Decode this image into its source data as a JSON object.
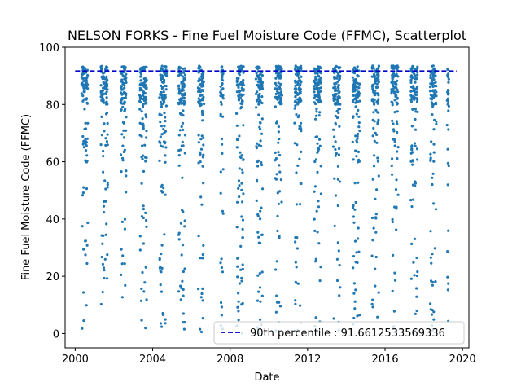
{
  "chart_data": {
    "type": "scatter",
    "title": "NELSON FORKS - Fine Fuel Moisture Code (FFMC), Scatterplot",
    "xlabel": "Date",
    "ylabel": "Fine Fuel Moisture Code (FFMC)",
    "xlim": [
      2000.0,
      2020.0
    ],
    "ylim": [
      -5,
      100
    ],
    "x_ticks": [
      2000,
      2004,
      2008,
      2012,
      2016,
      2020
    ],
    "y_ticks": [
      0,
      20,
      40,
      60,
      80,
      100
    ],
    "grid": false,
    "point_color": "#1f77b4",
    "reference_line": {
      "label": "90th percentile : 91.6612533569336",
      "value": 91.6612533569336,
      "color": "#0000cc",
      "style": "dashed"
    },
    "legend_position": "lower-right",
    "seasons": [
      {
        "year": 2000,
        "start": 2000.33,
        "end": 2000.65
      },
      {
        "year": 2001,
        "start": 2001.33,
        "end": 2001.68
      },
      {
        "year": 2002,
        "start": 2002.35,
        "end": 2002.65
      },
      {
        "year": 2003,
        "start": 2003.33,
        "end": 2003.7
      },
      {
        "year": 2004,
        "start": 2004.35,
        "end": 2004.72
      },
      {
        "year": 2005,
        "start": 2005.33,
        "end": 2005.68
      },
      {
        "year": 2006,
        "start": 2006.35,
        "end": 2006.65
      },
      {
        "year": 2007,
        "start": 2007.5,
        "end": 2007.65
      },
      {
        "year": 2008,
        "start": 2008.33,
        "end": 2008.7
      },
      {
        "year": 2009,
        "start": 2009.33,
        "end": 2009.68
      },
      {
        "year": 2010,
        "start": 2010.33,
        "end": 2010.68
      },
      {
        "year": 2011,
        "start": 2011.33,
        "end": 2011.68
      },
      {
        "year": 2012,
        "start": 2012.33,
        "end": 2012.7
      },
      {
        "year": 2013,
        "start": 2013.33,
        "end": 2013.68
      },
      {
        "year": 2014,
        "start": 2014.33,
        "end": 2014.7
      },
      {
        "year": 2015,
        "start": 2015.33,
        "end": 2015.68
      },
      {
        "year": 2016,
        "start": 2016.33,
        "end": 2016.68
      },
      {
        "year": 2017,
        "start": 2017.33,
        "end": 2017.68
      },
      {
        "year": 2018,
        "start": 2018.33,
        "end": 2018.65
      },
      {
        "year": 2019,
        "start": 2019.2,
        "end": 2019.3
      }
    ]
  }
}
